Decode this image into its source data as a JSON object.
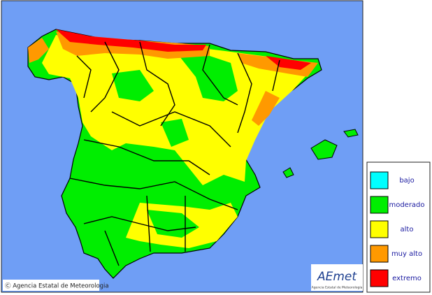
{
  "legend": {
    "items": [
      {
        "label": "bajo",
        "color": "#00ffff"
      },
      {
        "label": "moderado",
        "color": "#00ee00"
      },
      {
        "label": "alto",
        "color": "#ffff00"
      },
      {
        "label": "muy alto",
        "color": "#ff9900"
      },
      {
        "label": "extremo",
        "color": "#ff0000"
      }
    ]
  },
  "copyright": "Ⓒ Agencia Estatal de Meteorologia",
  "logo": {
    "name": "AEmet",
    "subtitle": "Agencia Estatal de Meteorología"
  }
}
